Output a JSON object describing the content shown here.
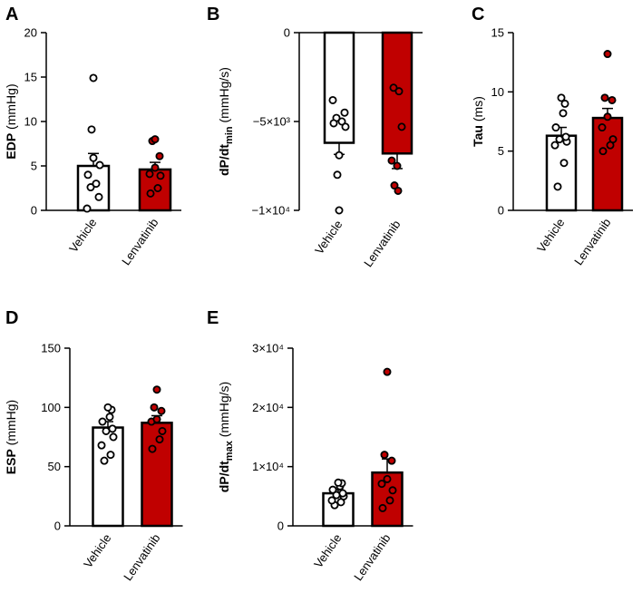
{
  "colors": {
    "vehicle_fill": "#ffffff",
    "lenvatinib_fill": "#c00000",
    "stroke": "#000000"
  },
  "chart_data": [
    {
      "panel": "A",
      "type": "bar",
      "categories": [
        "Vehicle",
        "Lenvatinib"
      ],
      "ylabel_bold": "EDP",
      "ylabel_rest": " (mmHg)",
      "ylabel_sub": "",
      "ylim": [
        0,
        20
      ],
      "yticks": [
        0,
        5,
        10,
        15,
        20
      ],
      "yticklabels": [
        "0",
        "5",
        "10",
        "15",
        "20"
      ],
      "means": [
        5.0,
        4.6
      ],
      "sem": [
        1.4,
        0.8
      ],
      "points": [
        [
          0.2,
          1.5,
          2.6,
          3.0,
          4.0,
          5.1,
          5.9,
          9.1,
          14.9
        ],
        [
          1.9,
          2.5,
          3.9,
          4.1,
          4.8,
          6.1,
          7.8,
          8.0
        ]
      ]
    },
    {
      "panel": "B",
      "type": "bar",
      "categories": [
        "Vehicle",
        "Lenvatinib"
      ],
      "ylabel_bold": "dP/dt",
      "ylabel_rest": " (mmHg/s)",
      "ylabel_sub": "min",
      "ylim": [
        -10000,
        0
      ],
      "yticks": [
        -10000,
        -5000,
        0
      ],
      "yticklabels": [
        "−1×10⁴",
        "−5×10³",
        "0"
      ],
      "means": [
        -6200,
        -6800
      ],
      "sem": [
        650,
        850
      ],
      "points": [
        [
          -3800,
          -4500,
          -4800,
          -5000,
          -5100,
          -5300,
          -6900,
          -8000,
          -10000
        ],
        [
          -3100,
          -3300,
          -5300,
          -7200,
          -7500,
          -8600,
          -8900
        ]
      ]
    },
    {
      "panel": "C",
      "type": "bar",
      "categories": [
        "Vehicle",
        "Lenvatinib"
      ],
      "ylabel_bold": "Tau",
      "ylabel_rest": " (ms)",
      "ylabel_sub": "",
      "ylim": [
        0,
        15
      ],
      "yticks": [
        0,
        5,
        10,
        15
      ],
      "yticklabels": [
        "0",
        "5",
        "10",
        "15"
      ],
      "means": [
        6.3,
        7.8
      ],
      "sem": [
        0.7,
        0.8
      ],
      "points": [
        [
          2.0,
          4.0,
          5.5,
          5.8,
          6.0,
          6.2,
          7.0,
          8.2,
          9.0,
          9.5
        ],
        [
          5.0,
          5.5,
          6.0,
          7.0,
          7.9,
          9.3,
          9.5,
          13.2
        ]
      ]
    },
    {
      "panel": "D",
      "type": "bar",
      "categories": [
        "Vehicle",
        "Lenvatinib"
      ],
      "ylabel_bold": "ESP",
      "ylabel_rest": " (mmHg)",
      "ylabel_sub": "",
      "ylim": [
        0,
        150
      ],
      "yticks": [
        0,
        50,
        100,
        150
      ],
      "yticklabels": [
        "0",
        "50",
        "100",
        "150"
      ],
      "means": [
        83,
        87
      ],
      "sem": [
        5,
        6
      ],
      "points": [
        [
          55,
          60,
          68,
          75,
          80,
          82,
          88,
          92,
          98,
          100
        ],
        [
          65,
          73,
          80,
          88,
          90,
          97,
          100,
          115
        ]
      ]
    },
    {
      "panel": "E",
      "type": "bar",
      "categories": [
        "Vehicle",
        "Lenvatinib"
      ],
      "ylabel_bold": "dP/dt",
      "ylabel_rest": " (mmHg/s)",
      "ylabel_sub": "max",
      "ylim": [
        0,
        30000
      ],
      "yticks": [
        0,
        10000,
        20000,
        30000
      ],
      "yticklabels": [
        "0",
        "1×10⁴",
        "2×10⁴",
        "3×10⁴"
      ],
      "means": [
        5500,
        9000
      ],
      "sem": [
        600,
        2300
      ],
      "points": [
        [
          3500,
          4000,
          4300,
          5000,
          5200,
          5500,
          6100,
          6700,
          7200,
          7300
        ],
        [
          3000,
          4300,
          6000,
          7100,
          7900,
          11000,
          12000,
          26000
        ]
      ]
    }
  ]
}
